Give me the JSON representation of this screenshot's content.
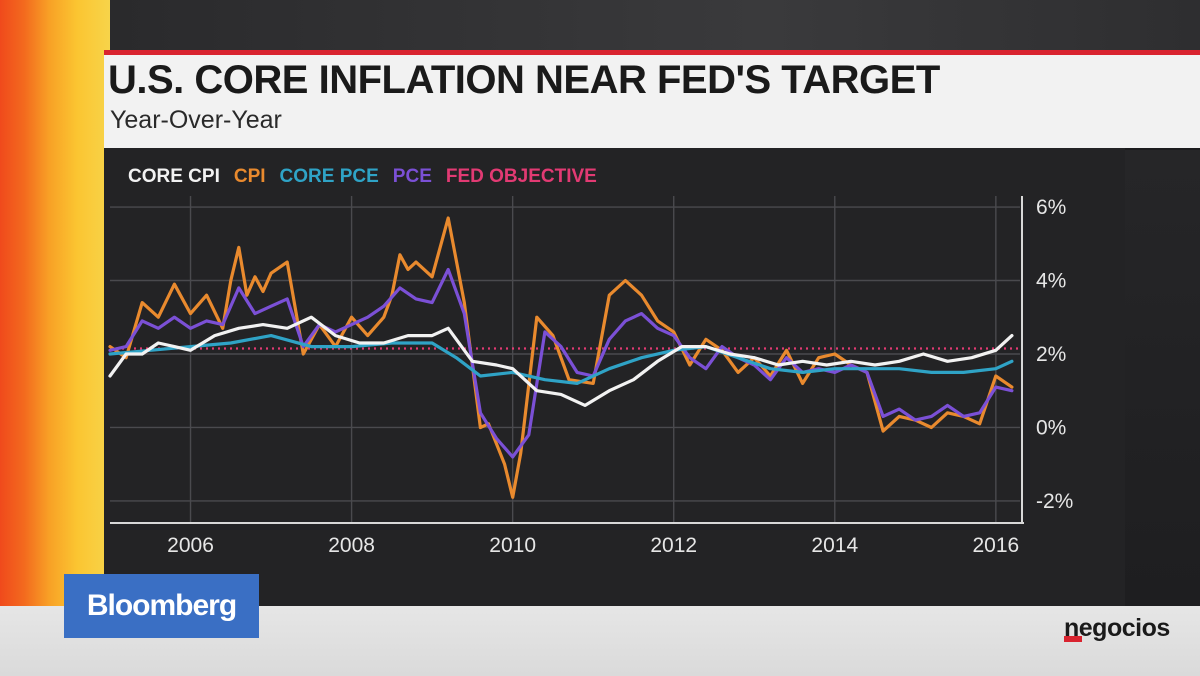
{
  "header": {
    "title": "U.S. CORE INFLATION NEAR FED'S TARGET",
    "subtitle": "Year-Over-Year"
  },
  "branding": {
    "broadcaster": "Bloomberg",
    "publisher": "negocios"
  },
  "chart_data": {
    "type": "line",
    "title": "U.S. CORE INFLATION NEAR FED'S TARGET",
    "subtitle": "Year-Over-Year",
    "legend_position": "top-left",
    "grid": true,
    "xlim": [
      2005.0,
      2016.3
    ],
    "ylim": [
      -2.6,
      6.3
    ],
    "x_ticks": [
      2006,
      2008,
      2010,
      2012,
      2014,
      2016
    ],
    "x_tick_labels": [
      "2006",
      "2008",
      "2010",
      "2012",
      "2014",
      "2016"
    ],
    "y_ticks": [
      6,
      4,
      2,
      0,
      -2
    ],
    "y_tick_labels": [
      "6%",
      "4%",
      "2%",
      "0%",
      "-2%"
    ],
    "y_axis_side": "right",
    "reference_lines": [
      {
        "name": "FED OBJECTIVE",
        "value": 2.15,
        "color": "#e23a73",
        "style": "dotted"
      }
    ],
    "series": [
      {
        "name": "CPI",
        "color": "#e98a2e",
        "x": [
          2005.0,
          2005.2,
          2005.4,
          2005.6,
          2005.8,
          2006.0,
          2006.2,
          2006.4,
          2006.5,
          2006.6,
          2006.7,
          2006.8,
          2006.9,
          2007.0,
          2007.2,
          2007.4,
          2007.6,
          2007.8,
          2008.0,
          2008.2,
          2008.4,
          2008.5,
          2008.6,
          2008.7,
          2008.8,
          2009.0,
          2009.2,
          2009.4,
          2009.6,
          2009.7,
          2009.9,
          2010.0,
          2010.1,
          2010.3,
          2010.5,
          2010.7,
          2011.0,
          2011.2,
          2011.4,
          2011.6,
          2011.8,
          2012.0,
          2012.2,
          2012.4,
          2012.6,
          2012.8,
          2013.0,
          2013.2,
          2013.4,
          2013.6,
          2013.8,
          2014.0,
          2014.2,
          2014.4,
          2014.6,
          2014.8,
          2015.0,
          2015.2,
          2015.4,
          2015.6,
          2015.8,
          2016.0,
          2016.2
        ],
        "y": [
          2.2,
          1.9,
          3.4,
          3.0,
          3.9,
          3.1,
          3.6,
          2.7,
          4.0,
          4.9,
          3.6,
          4.1,
          3.7,
          4.2,
          4.5,
          2.0,
          2.8,
          2.2,
          3.0,
          2.5,
          3.0,
          3.6,
          4.7,
          4.3,
          4.5,
          4.1,
          5.7,
          3.4,
          0.0,
          0.1,
          -1.0,
          -1.9,
          -0.7,
          3.0,
          2.5,
          1.3,
          1.2,
          3.6,
          4.0,
          3.6,
          2.9,
          2.6,
          1.7,
          2.4,
          2.1,
          1.5,
          1.9,
          1.4,
          2.1,
          1.2,
          1.9,
          2.0,
          1.7,
          1.5,
          -0.1,
          0.3,
          0.2,
          0.0,
          0.4,
          0.3,
          0.1,
          1.4,
          1.1
        ]
      },
      {
        "name": "PCE",
        "color": "#7b50d6",
        "x": [
          2005.0,
          2005.2,
          2005.4,
          2005.6,
          2005.8,
          2006.0,
          2006.2,
          2006.4,
          2006.6,
          2006.8,
          2007.0,
          2007.2,
          2007.4,
          2007.6,
          2007.8,
          2008.0,
          2008.2,
          2008.4,
          2008.6,
          2008.8,
          2009.0,
          2009.2,
          2009.4,
          2009.6,
          2009.8,
          2010.0,
          2010.2,
          2010.4,
          2010.6,
          2010.8,
          2011.0,
          2011.2,
          2011.4,
          2011.6,
          2011.8,
          2012.0,
          2012.2,
          2012.4,
          2012.6,
          2012.8,
          2013.0,
          2013.2,
          2013.4,
          2013.6,
          2013.8,
          2014.0,
          2014.2,
          2014.4,
          2014.6,
          2014.8,
          2015.0,
          2015.2,
          2015.4,
          2015.6,
          2015.8,
          2016.0,
          2016.2
        ],
        "y": [
          2.1,
          2.2,
          2.9,
          2.7,
          3.0,
          2.7,
          2.9,
          2.8,
          3.8,
          3.1,
          3.3,
          3.5,
          2.2,
          2.8,
          2.6,
          2.8,
          3.0,
          3.3,
          3.8,
          3.5,
          3.4,
          4.3,
          3.1,
          0.4,
          -0.3,
          -0.8,
          -0.2,
          2.6,
          2.2,
          1.5,
          1.4,
          2.4,
          2.9,
          3.1,
          2.7,
          2.5,
          1.9,
          1.6,
          2.2,
          1.9,
          1.7,
          1.3,
          1.9,
          1.5,
          1.6,
          1.5,
          1.7,
          1.5,
          0.3,
          0.5,
          0.2,
          0.3,
          0.6,
          0.3,
          0.4,
          1.1,
          1.0
        ]
      },
      {
        "name": "CORE PCE",
        "color": "#2fa3c6",
        "x": [
          2005.0,
          2005.5,
          2006.0,
          2006.5,
          2007.0,
          2007.5,
          2008.0,
          2008.5,
          2009.0,
          2009.3,
          2009.6,
          2010.0,
          2010.4,
          2010.8,
          2011.2,
          2011.6,
          2012.0,
          2012.4,
          2012.8,
          2013.2,
          2013.6,
          2014.0,
          2014.4,
          2014.8,
          2015.2,
          2015.6,
          2016.0,
          2016.2
        ],
        "y": [
          2.0,
          2.1,
          2.2,
          2.3,
          2.5,
          2.2,
          2.2,
          2.3,
          2.3,
          1.9,
          1.4,
          1.5,
          1.3,
          1.2,
          1.6,
          1.9,
          2.1,
          2.2,
          1.9,
          1.6,
          1.5,
          1.6,
          1.6,
          1.6,
          1.5,
          1.5,
          1.6,
          1.8
        ]
      },
      {
        "name": "CORE CPI",
        "color": "#f2f2f2",
        "x": [
          2005.0,
          2005.2,
          2005.4,
          2005.6,
          2005.8,
          2006.0,
          2006.3,
          2006.6,
          2006.9,
          2007.2,
          2007.5,
          2007.8,
          2008.1,
          2008.4,
          2008.7,
          2009.0,
          2009.2,
          2009.5,
          2009.8,
          2010.0,
          2010.3,
          2010.6,
          2010.9,
          2011.2,
          2011.5,
          2011.8,
          2012.1,
          2012.4,
          2012.7,
          2013.0,
          2013.3,
          2013.6,
          2013.9,
          2014.2,
          2014.5,
          2014.8,
          2015.1,
          2015.4,
          2015.7,
          2016.0,
          2016.2
        ],
        "y": [
          1.4,
          2.0,
          2.0,
          2.3,
          2.2,
          2.1,
          2.5,
          2.7,
          2.8,
          2.7,
          3.0,
          2.5,
          2.3,
          2.3,
          2.5,
          2.5,
          2.7,
          1.8,
          1.7,
          1.6,
          1.0,
          0.9,
          0.6,
          1.0,
          1.3,
          1.8,
          2.2,
          2.2,
          2.0,
          1.9,
          1.7,
          1.8,
          1.7,
          1.8,
          1.7,
          1.8,
          2.0,
          1.8,
          1.9,
          2.1,
          2.5
        ]
      }
    ],
    "legend": [
      "CORE CPI",
      "CPI",
      "CORE PCE",
      "PCE",
      "FED OBJECTIVE"
    ],
    "legend_colors": [
      "#f2f2f2",
      "#e98a2e",
      "#2fa3c6",
      "#7b50d6",
      "#e23a73"
    ]
  }
}
